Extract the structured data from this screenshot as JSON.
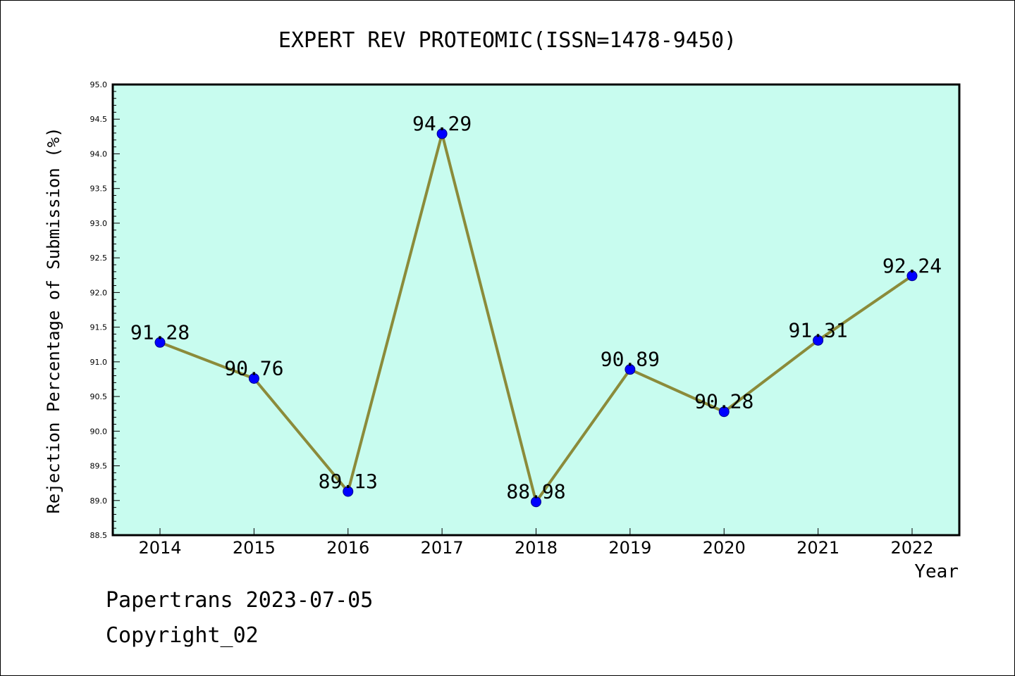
{
  "chart_data": {
    "type": "line",
    "title": "EXPERT REV PROTEOMIC(ISSN=1478-9450)",
    "xlabel": "Year",
    "ylabel": "Rejection Percentage of Submission (%)",
    "categories": [
      "2014",
      "2015",
      "2016",
      "2017",
      "2018",
      "2019",
      "2020",
      "2021",
      "2022"
    ],
    "values": [
      91.28,
      90.76,
      89.13,
      94.29,
      88.98,
      90.89,
      90.28,
      91.31,
      92.24
    ],
    "data_labels": [
      "91.28",
      "90.76",
      "89.13",
      "94.29",
      "88.98",
      "90.89",
      "90.28",
      "91.31",
      "92.24"
    ],
    "ylim": [
      88.5,
      95.0
    ],
    "yticks": [
      "88.5",
      "89.0",
      "89.5",
      "90.0",
      "90.5",
      "91.0",
      "91.5",
      "92.0",
      "92.5",
      "93.0",
      "93.5",
      "94.0",
      "94.5",
      "95.0"
    ],
    "grid": false,
    "legend": false,
    "colors": {
      "plot_background": "#c8fcef",
      "line": "#8b8b3a",
      "marker": "#0000ff"
    }
  },
  "footer": {
    "line1": "Papertrans 2023-07-05",
    "line2": "Copyright_02"
  }
}
